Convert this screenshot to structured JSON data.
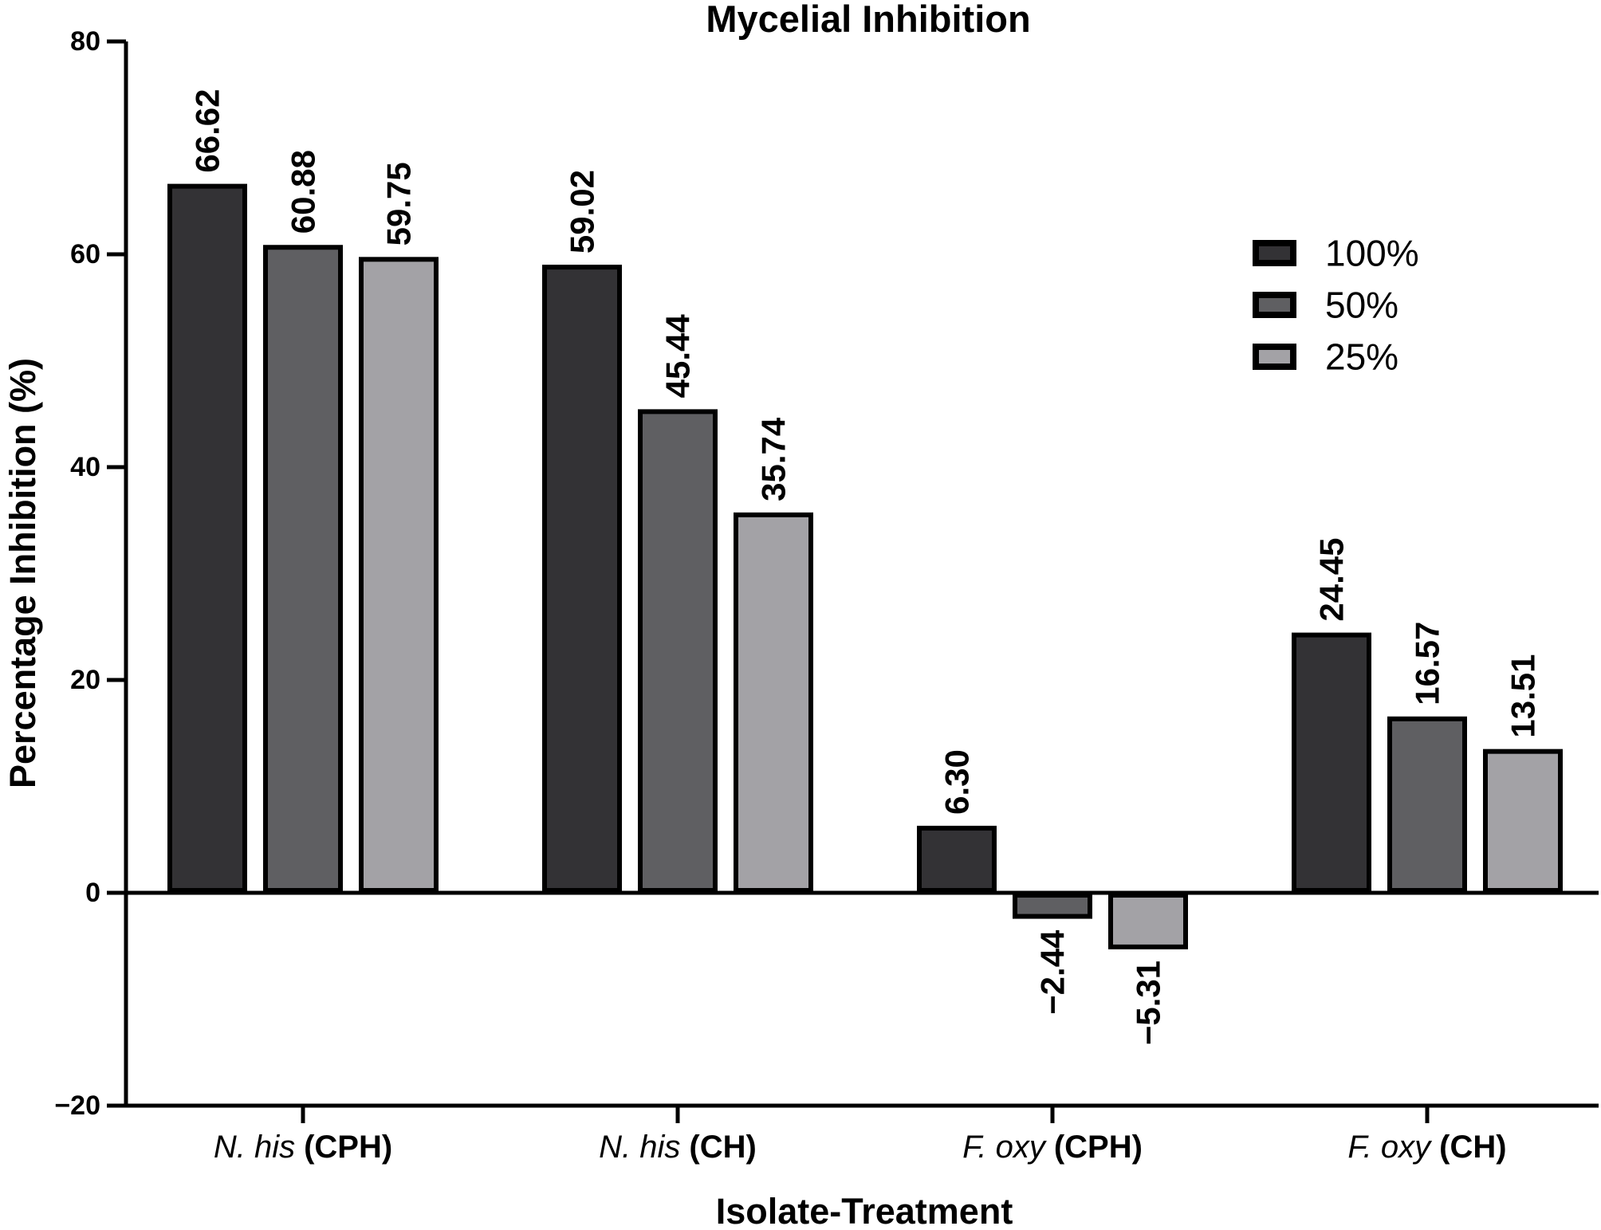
{
  "figure": {
    "background": "#ffffff",
    "text_color": "#000000"
  },
  "chart_data": {
    "type": "bar",
    "title": "Mycelial Inhibition",
    "xlabel": "Isolate-Treatment",
    "ylabel": "Percentage Inhibition (%)",
    "ylim": [
      -20,
      80
    ],
    "yticks": [
      80,
      60,
      40,
      20,
      0,
      -20
    ],
    "ytick_labels": [
      "80",
      "60",
      "40",
      "20",
      "0",
      "−20"
    ],
    "grid": false,
    "legend_position": "top-right",
    "bar_outline_color": "#000000",
    "axis_color": "#000000",
    "categories": [
      {
        "species": "N. his",
        "treatment": "(CPH)",
        "full": "N. his (CPH)"
      },
      {
        "species": "N. his",
        "treatment": "(CH)",
        "full": "N. his (CH)"
      },
      {
        "species": "F. oxy",
        "treatment": "(CPH)",
        "full": "F. oxy (CPH)"
      },
      {
        "species": "F. oxy",
        "treatment": "(CH)",
        "full": "F. oxy (CH)"
      }
    ],
    "series": [
      {
        "name": "100%",
        "color": "#333235",
        "values": [
          66.62,
          59.02,
          6.3,
          24.45
        ],
        "labels": [
          "66.62",
          "59.02",
          "6.30",
          "24.45"
        ]
      },
      {
        "name": "50%",
        "color": "#5f5f62",
        "values": [
          60.88,
          45.44,
          -2.44,
          16.57
        ],
        "labels": [
          "60.88",
          "45.44",
          "−2.44",
          "16.57"
        ]
      },
      {
        "name": "25%",
        "color": "#a3a2a6",
        "values": [
          59.75,
          35.74,
          -5.31,
          13.51
        ],
        "labels": [
          "59.75",
          "35.74",
          "−5.31",
          "13.51"
        ]
      }
    ]
  }
}
